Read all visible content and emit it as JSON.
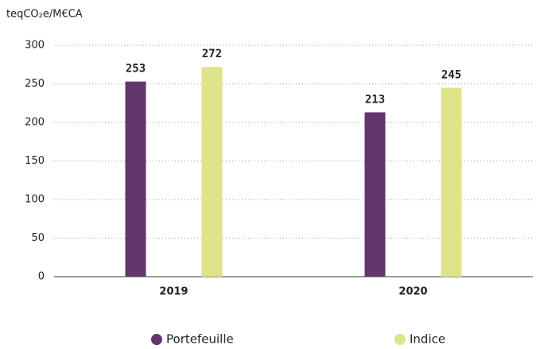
{
  "chart_data": {
    "type": "bar",
    "y_label": "teqCO₂e/M€CA",
    "categories": [
      "2019",
      "2020"
    ],
    "series": [
      {
        "name": "Portefeuille",
        "color": "#63356d",
        "values": [
          253,
          213
        ]
      },
      {
        "name": "Indice",
        "color": "#dde48a",
        "values": [
          272,
          245
        ]
      }
    ],
    "ylim": [
      0,
      300
    ],
    "yticks": [
      0,
      50,
      100,
      150,
      200,
      250,
      300
    ],
    "grid": true,
    "legend": "bottom"
  }
}
